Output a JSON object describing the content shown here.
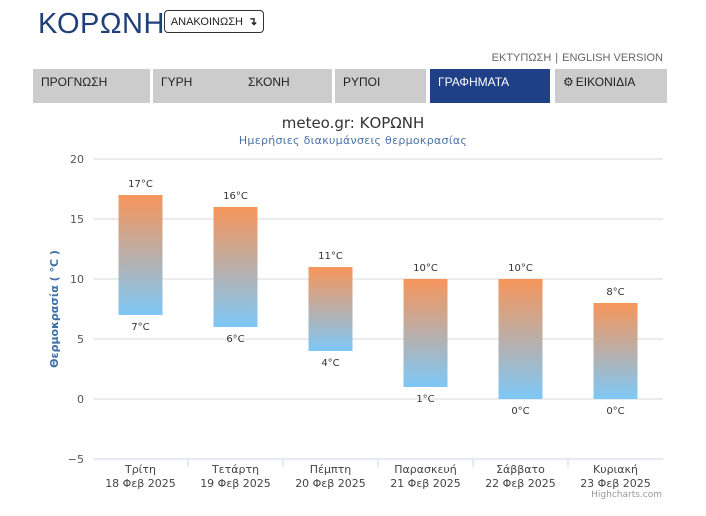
{
  "header": {
    "site_title": "ΚΟΡΩΝΗ",
    "announce_label": "ΑΝΑΚΟΙΝΩΣΗ",
    "announce_icon": "arrow-down-right-icon"
  },
  "top_links": {
    "print": "ΕΚΤΥΠΩΣΗ",
    "separator": "|",
    "english": "ENGLISH VERSION"
  },
  "nav": {
    "tabs": [
      {
        "label": "ΠΡΟΓΝΩΣΗ",
        "active": false
      },
      {
        "label": "ΓΥΡΗ",
        "active": false
      },
      {
        "label": "ΣΚΟΝΗ",
        "active": false
      },
      {
        "label": "ΡΥΠΟΙ",
        "active": false
      },
      {
        "label": "ΓΡΑΦΗΜΑΤΑ",
        "active": true
      },
      {
        "label": "ΕΙΚΟΝΙΔΙΑ",
        "active": false,
        "icon": "gear-icon"
      }
    ],
    "active_color": "#1f3f86",
    "inactive_color": "#cccccc"
  },
  "chart_data": {
    "type": "columnrange",
    "title": "meteo.gr: ΚΟΡΩΝΗ",
    "subtitle": "Ημερήσιες διακυμάνσεις θερμοκρασίας",
    "ylabel": "Θερμοκρασία ( °C )",
    "ylim": [
      -5,
      20
    ],
    "yticks": [
      -5,
      0,
      5,
      10,
      15,
      20
    ],
    "grid": true,
    "categories": [
      {
        "day": "Τρίτη",
        "date": "18 Φεβ 2025"
      },
      {
        "day": "Τετάρτη",
        "date": "19 Φεβ 2025"
      },
      {
        "day": "Πέμπτη",
        "date": "20 Φεβ 2025"
      },
      {
        "day": "Παρασκευή",
        "date": "21 Φεβ 2025"
      },
      {
        "day": "Σάββατο",
        "date": "22 Φεβ 2025"
      },
      {
        "day": "Κυριακή",
        "date": "23 Φεβ 2025"
      }
    ],
    "series": [
      {
        "low": 7,
        "high": 17
      },
      {
        "low": 6,
        "high": 16
      },
      {
        "low": 4,
        "high": 11
      },
      {
        "low": 1,
        "high": 10
      },
      {
        "low": 0,
        "high": 10
      },
      {
        "low": 0,
        "high": 8
      }
    ],
    "low_labels": [
      "7°C",
      "6°C",
      "4°C",
      "1°C",
      "0°C",
      "0°C"
    ],
    "high_labels": [
      "17°C",
      "16°C",
      "11°C",
      "10°C",
      "10°C",
      "8°C"
    ],
    "colors": {
      "warm": "#f7955a",
      "cold": "#7ec8f7"
    },
    "credits": "Highcharts.com"
  }
}
